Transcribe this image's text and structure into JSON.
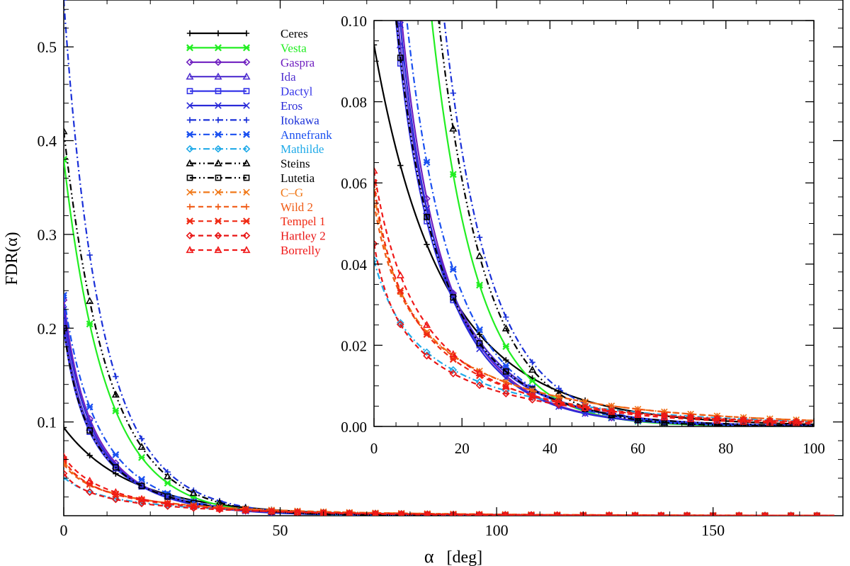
{
  "chart_data": [
    {
      "type": "line",
      "panel": "main",
      "xlabel_symbol": "α",
      "xlabel_unit": "[deg]",
      "ylabel": "FDR(α)",
      "xlim": [
        0,
        180
      ],
      "ylim": [
        0,
        0.55
      ],
      "xticks": [
        0,
        50,
        100,
        150
      ],
      "yticks": [
        0.1,
        0.2,
        0.3,
        0.4,
        0.5
      ],
      "marker_step_deg": 6,
      "legend_position": "top-center",
      "series": [
        {
          "name": "Ceres",
          "color": "#000000",
          "dash": "solid",
          "marker": "plus",
          "f0": 0.094,
          "k": 0.028,
          "n": 0.9,
          "t": 0.04
        },
        {
          "name": "Vesta",
          "color": "#22ee22",
          "dash": "solid",
          "marker": "asterisk",
          "f0": 0.38,
          "k": 0.025,
          "n": 1.0,
          "t": 0.08
        },
        {
          "name": "Gaspra",
          "color": "#7020c0",
          "dash": "solid",
          "marker": "diamond",
          "f0": 0.23,
          "k": 0.18,
          "n": 0.6,
          "t": 0.06
        },
        {
          "name": "Ida",
          "color": "#5030d0",
          "dash": "solid",
          "marker": "triangle",
          "f0": 0.21,
          "k": 0.22,
          "n": 0.6,
          "t": 0.05
        },
        {
          "name": "Dactyl",
          "color": "#3535e8",
          "dash": "solid",
          "marker": "square",
          "f0": 0.2,
          "k": 0.22,
          "n": 0.6,
          "t": 0.05
        },
        {
          "name": "Eros",
          "color": "#2a2ad8",
          "dash": "solid",
          "marker": "x",
          "f0": 0.22,
          "k": 0.18,
          "n": 0.6,
          "t": 0.06
        },
        {
          "name": "Itokawa",
          "color": "#1a30d8",
          "dash": "dashdot",
          "marker": "plus",
          "f0": 0.55,
          "k": 0.05,
          "n": 1.0,
          "t": 0.07
        },
        {
          "name": "Annefrank",
          "color": "#1a50f0",
          "dash": "dashdot",
          "marker": "asterisk",
          "f0": 0.235,
          "k": 0.13,
          "n": 0.6,
          "t": 0.06
        },
        {
          "name": "Mathilde",
          "color": "#20aae8",
          "dash": "dashdot",
          "marker": "diamond",
          "f0": 0.041,
          "k": 0.15,
          "n": 0.55,
          "t": 0.02
        },
        {
          "name": "Steins",
          "color": "#000000",
          "dash": "dashdotdot",
          "marker": "triangle",
          "f0": 0.41,
          "k": 0.018,
          "n": 1.0,
          "t": 0.08
        },
        {
          "name": "Lutetia",
          "color": "#000000",
          "dash": "dashdotdot",
          "marker": "square",
          "f0": 0.2,
          "k": 0.21,
          "n": 0.6,
          "t": 0.05
        },
        {
          "name": "C–G",
          "color": "#f07818",
          "dash": "dashdot",
          "marker": "x",
          "f0": 0.058,
          "k": 0.2,
          "n": 0.55,
          "t": 0.02
        },
        {
          "name": "Wild 2",
          "color": "#f05a14",
          "dash": "dashed",
          "marker": "plus",
          "f0": 0.055,
          "k": 0.18,
          "n": 0.55,
          "t": 0.02
        },
        {
          "name": "Tempel 1",
          "color": "#f02a14",
          "dash": "dashed",
          "marker": "asterisk",
          "f0": 0.06,
          "k": 0.2,
          "n": 0.55,
          "t": 0.025
        },
        {
          "name": "Hartley 2",
          "color": "#e81414",
          "dash": "dashed",
          "marker": "diamond",
          "f0": 0.045,
          "k": 0.22,
          "n": 0.55,
          "t": 0.02
        },
        {
          "name": "Borrelly",
          "color": "#f01818",
          "dash": "dashed",
          "marker": "triangle",
          "f0": 0.063,
          "k": 0.13,
          "n": 0.6,
          "t": 0.03
        }
      ]
    },
    {
      "type": "line",
      "panel": "inset",
      "xlim": [
        0,
        100
      ],
      "ylim": [
        0,
        0.1
      ],
      "xticks": [
        0,
        20,
        40,
        60,
        80,
        100
      ],
      "yticks": [
        0.0,
        0.02,
        0.04,
        0.06,
        0.08,
        0.1
      ],
      "ytick_labels": [
        "0.00",
        "0.02",
        "0.04",
        "0.06",
        "0.08",
        "0.10"
      ],
      "note": "zoom of the same 16 series"
    }
  ]
}
